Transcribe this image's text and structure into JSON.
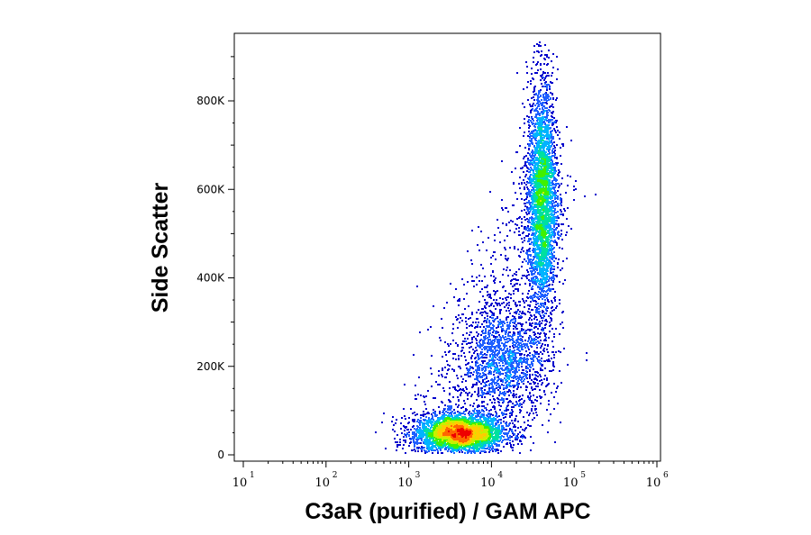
{
  "chart_data": {
    "type": "scatter",
    "title": "",
    "xlabel": "C3aR (purified) / GAM APC",
    "ylabel": "Side Scatter",
    "x_scale": "log",
    "xlim": [
      10,
      1000000
    ],
    "x_ticks": [
      {
        "value": 10,
        "base": "10",
        "exp": "1"
      },
      {
        "value": 100,
        "base": "10",
        "exp": "2"
      },
      {
        "value": 1000,
        "base": "10",
        "exp": "3"
      },
      {
        "value": 10000,
        "base": "10",
        "exp": "4"
      },
      {
        "value": 100000,
        "base": "10",
        "exp": "5"
      },
      {
        "value": 1000000,
        "base": "10",
        "exp": "6"
      }
    ],
    "y_scale": "linear",
    "ylim": [
      0,
      950000
    ],
    "y_ticks": [
      {
        "value": 0,
        "label": "0"
      },
      {
        "value": 200000,
        "label": "200K"
      },
      {
        "value": 400000,
        "label": "400K"
      },
      {
        "value": 600000,
        "label": "600K"
      },
      {
        "value": 800000,
        "label": "800K"
      }
    ],
    "grid": false,
    "legend": "none",
    "density_colormap": [
      "#0000cc",
      "#1f5fff",
      "#00b4ff",
      "#00e0a0",
      "#40f000",
      "#c8f000",
      "#ffcc00",
      "#ff6600",
      "#ee0000"
    ],
    "populations": [
      {
        "name": "",
        "center_x": 4000,
        "center_y": 50000,
        "count": 3500
      },
      {
        "name": "",
        "center_x": 15000,
        "center_y": 210000,
        "count": 1500
      },
      {
        "name": "",
        "center_x": 40000,
        "center_y": 580000,
        "count": 3200
      }
    ]
  }
}
